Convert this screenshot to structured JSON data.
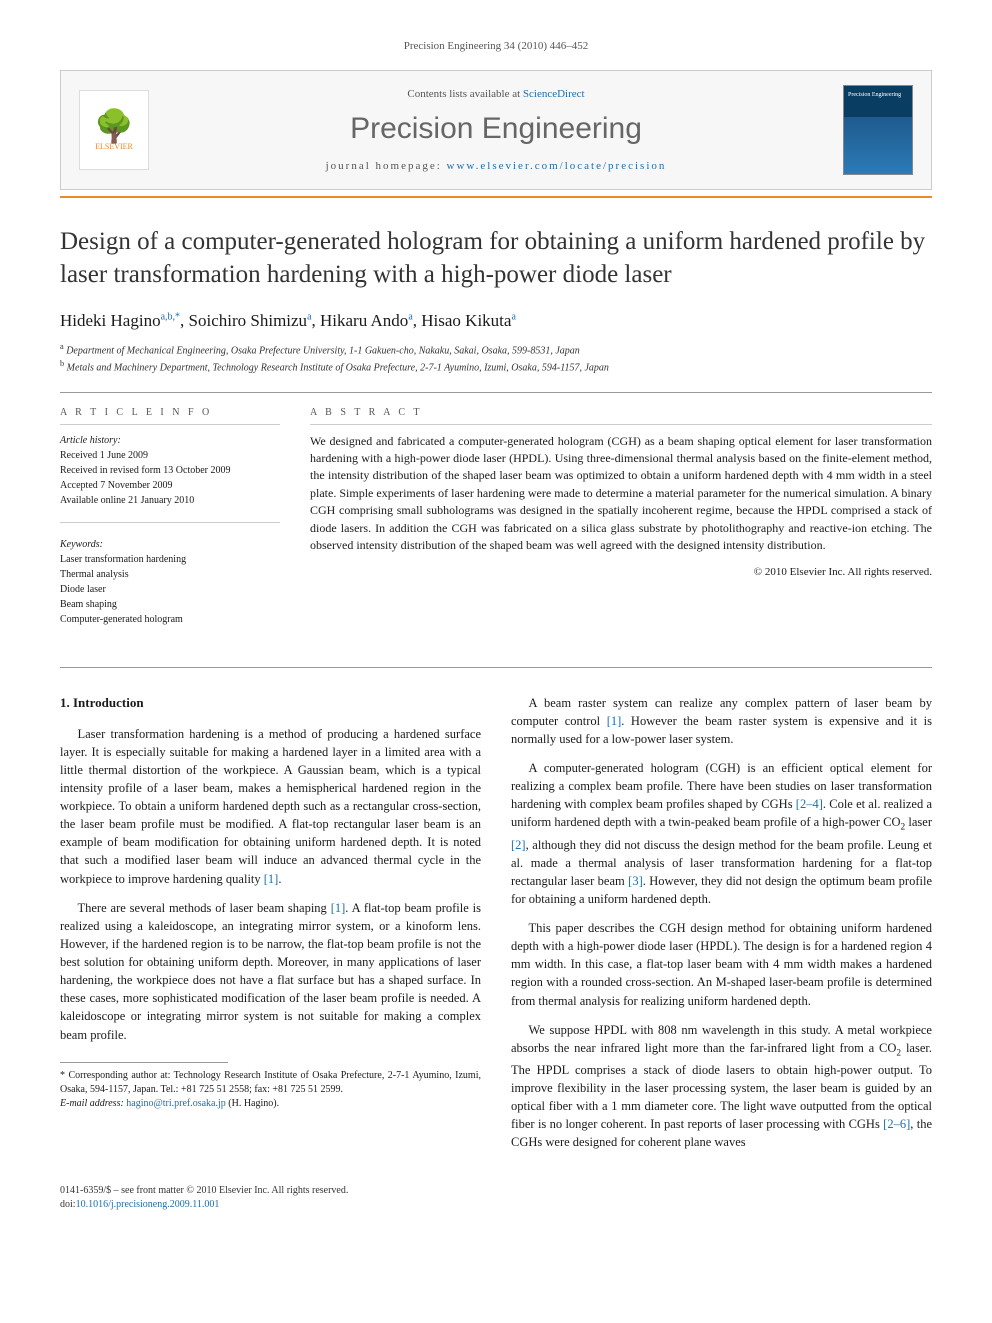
{
  "running_head": "Precision Engineering 34 (2010) 446–452",
  "header": {
    "publisher": "ELSEVIER",
    "contents_prefix": "Contents lists available at ",
    "contents_link": "ScienceDirect",
    "journal": "Precision Engineering",
    "homepage_prefix": "journal homepage: ",
    "homepage_url": "www.elsevier.com/locate/precision"
  },
  "title": "Design of a computer-generated hologram for obtaining a uniform hardened profile by laser transformation hardening with a high-power diode laser",
  "authors_html": "Hideki Hagino<sup>a,b,*</sup>, Soichiro Shimizu<sup>a</sup>, Hikaru Ando<sup>a</sup>, Hisao Kikuta<sup>a</sup>",
  "affiliations": [
    {
      "sup": "a",
      "text": "Department of Mechanical Engineering, Osaka Prefecture University, 1-1 Gakuen-cho, Nakaku, Sakai, Osaka, 599-8531, Japan"
    },
    {
      "sup": "b",
      "text": "Metals and Machinery Department, Technology Research Institute of Osaka Prefecture, 2-7-1 Ayumino, Izumi, Osaka, 594-1157, Japan"
    }
  ],
  "article_info": {
    "head": "A R T I C L E   I N F O",
    "history_label": "Article history:",
    "history": [
      "Received 1 June 2009",
      "Received in revised form 13 October 2009",
      "Accepted 7 November 2009",
      "Available online 21 January 2010"
    ],
    "keywords_label": "Keywords:",
    "keywords": [
      "Laser transformation hardening",
      "Thermal analysis",
      "Diode laser",
      "Beam shaping",
      "Computer-generated hologram"
    ]
  },
  "abstract": {
    "head": "A B S T R A C T",
    "text": "We designed and fabricated a computer-generated hologram (CGH) as a beam shaping optical element for laser transformation hardening with a high-power diode laser (HPDL). Using three-dimensional thermal analysis based on the finite-element method, the intensity distribution of the shaped laser beam was optimized to obtain a uniform hardened depth with 4 mm width in a steel plate. Simple experiments of laser hardening were made to determine a material parameter for the numerical simulation. A binary CGH comprising small subholograms was designed in the spatially incoherent regime, because the HPDL comprised a stack of diode lasers. In addition the CGH was fabricated on a silica glass substrate by photolithography and reactive-ion etching. The observed intensity distribution of the shaped beam was well agreed with the designed intensity distribution.",
    "copyright": "© 2010 Elsevier Inc. All rights reserved."
  },
  "body": {
    "section_head": "1. Introduction",
    "left_paras": [
      "Laser transformation hardening is a method of producing a hardened surface layer. It is especially suitable for making a hardened layer in a limited area with a little thermal distortion of the workpiece. A Gaussian beam, which is a typical intensity profile of a laser beam, makes a hemispherical hardened region in the workpiece. To obtain a uniform hardened depth such as a rectangular cross-section, the laser beam profile must be modified. A flat-top rectangular laser beam is an example of beam modification for obtaining uniform hardened depth. It is noted that such a modified laser beam will induce an advanced thermal cycle in the workpiece to improve hardening quality [1].",
      "There are several methods of laser beam shaping [1]. A flat-top beam profile is realized using a kaleidoscope, an integrating mirror system, or a kinoform lens. However, if the hardened region is to be narrow, the flat-top beam profile is not the best solution for obtaining uniform depth. Moreover, in many applications of laser hardening, the workpiece does not have a flat surface but has a shaped surface. In these cases, more sophisticated modification of the laser beam profile is needed. A kaleidoscope or integrating mirror system is not suitable for making a complex beam profile."
    ],
    "right_paras": [
      "A beam raster system can realize any complex pattern of laser beam by computer control [1]. However the beam raster system is expensive and it is normally used for a low-power laser system.",
      "A computer-generated hologram (CGH) is an efficient optical element for realizing a complex beam profile. There have been studies on laser transformation hardening with complex beam profiles shaped by CGHs [2–4]. Cole et al. realized a uniform hardened depth with a twin-peaked beam profile of a high-power CO₂ laser [2], although they did not discuss the design method for the beam profile. Leung et al. made a thermal analysis of laser transformation hardening for a flat-top rectangular laser beam [3]. However, they did not design the optimum beam profile for obtaining a uniform hardened depth.",
      "This paper describes the CGH design method for obtaining uniform hardened depth with a high-power diode laser (HPDL). The design is for a hardened region 4 mm width. In this case, a flat-top laser beam with 4 mm width makes a hardened region with a rounded cross-section. An M-shaped laser-beam profile is determined from thermal analysis for realizing uniform hardened depth.",
      "We suppose HPDL with 808 nm wavelength in this study. A metal workpiece absorbs the near infrared light more than the far-infrared light from a CO₂ laser. The HPDL comprises a stack of diode lasers to obtain high-power output. To improve flexibility in the laser processing system, the laser beam is guided by an optical fiber with a 1 mm diameter core. The light wave outputted from the optical fiber is no longer coherent. In past reports of laser processing with CGHs [2–6], the CGHs were designed for coherent plane waves"
    ]
  },
  "footnote": {
    "corr_label": "* Corresponding author at:",
    "corr_text": " Technology Research Institute of Osaka Prefecture, 2-7-1 Ayumino, Izumi, Osaka, 594-1157, Japan. Tel.: +81 725 51 2558; fax: +81 725 51 2599.",
    "email_label": "E-mail address: ",
    "email": "hagino@tri.pref.osaka.jp",
    "email_suffix": " (H. Hagino)."
  },
  "bottom": {
    "issn": "0141-6359/$ – see front matter © 2010 Elsevier Inc. All rights reserved.",
    "doi_prefix": "doi:",
    "doi": "10.1016/j.precisioneng.2009.11.001"
  }
}
